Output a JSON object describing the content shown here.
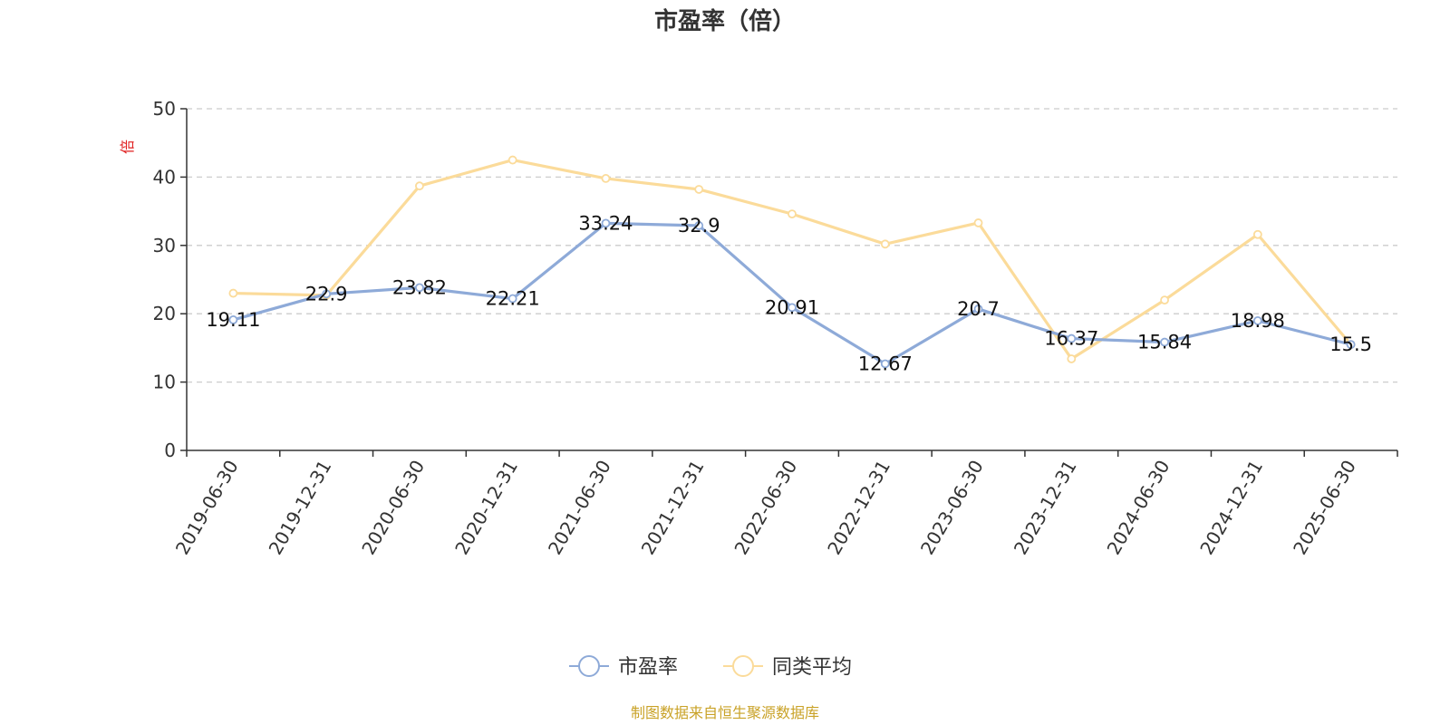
{
  "chart_data": {
    "type": "line",
    "title": "市盈率（倍）",
    "ylabel": "倍",
    "ylim": [
      0,
      50
    ],
    "yticks": [
      "0",
      "10",
      "20",
      "30",
      "40",
      "50"
    ],
    "grid": true,
    "legend_position": "bottom-center",
    "categories": [
      "2019-06-30",
      "2019-12-31",
      "2020-06-30",
      "2020-12-31",
      "2021-06-30",
      "2021-12-31",
      "2022-06-30",
      "2022-12-31",
      "2023-06-30",
      "2023-12-31",
      "2024-06-30",
      "2024-12-31",
      "2025-06-30"
    ],
    "series": [
      {
        "name": "市盈率",
        "color": "#8eaad8",
        "values": [
          19.11,
          22.9,
          23.82,
          22.21,
          33.24,
          32.9,
          20.91,
          12.67,
          20.7,
          16.37,
          15.84,
          18.98,
          15.5
        ],
        "labels": [
          "19.11",
          "22.9",
          "23.82",
          "22.21",
          "33.24",
          "32.9",
          "20.91",
          "12.67",
          "20.7",
          "16.37",
          "15.84",
          "18.98",
          "15.5"
        ]
      },
      {
        "name": "同类平均",
        "color": "#fbdb9a",
        "values": [
          23.0,
          22.7,
          38.7,
          42.5,
          39.8,
          38.2,
          34.6,
          30.2,
          33.3,
          13.4,
          22.0,
          31.6,
          15.5
        ]
      }
    ],
    "source": "制图数据来自恒生聚源数据库"
  }
}
